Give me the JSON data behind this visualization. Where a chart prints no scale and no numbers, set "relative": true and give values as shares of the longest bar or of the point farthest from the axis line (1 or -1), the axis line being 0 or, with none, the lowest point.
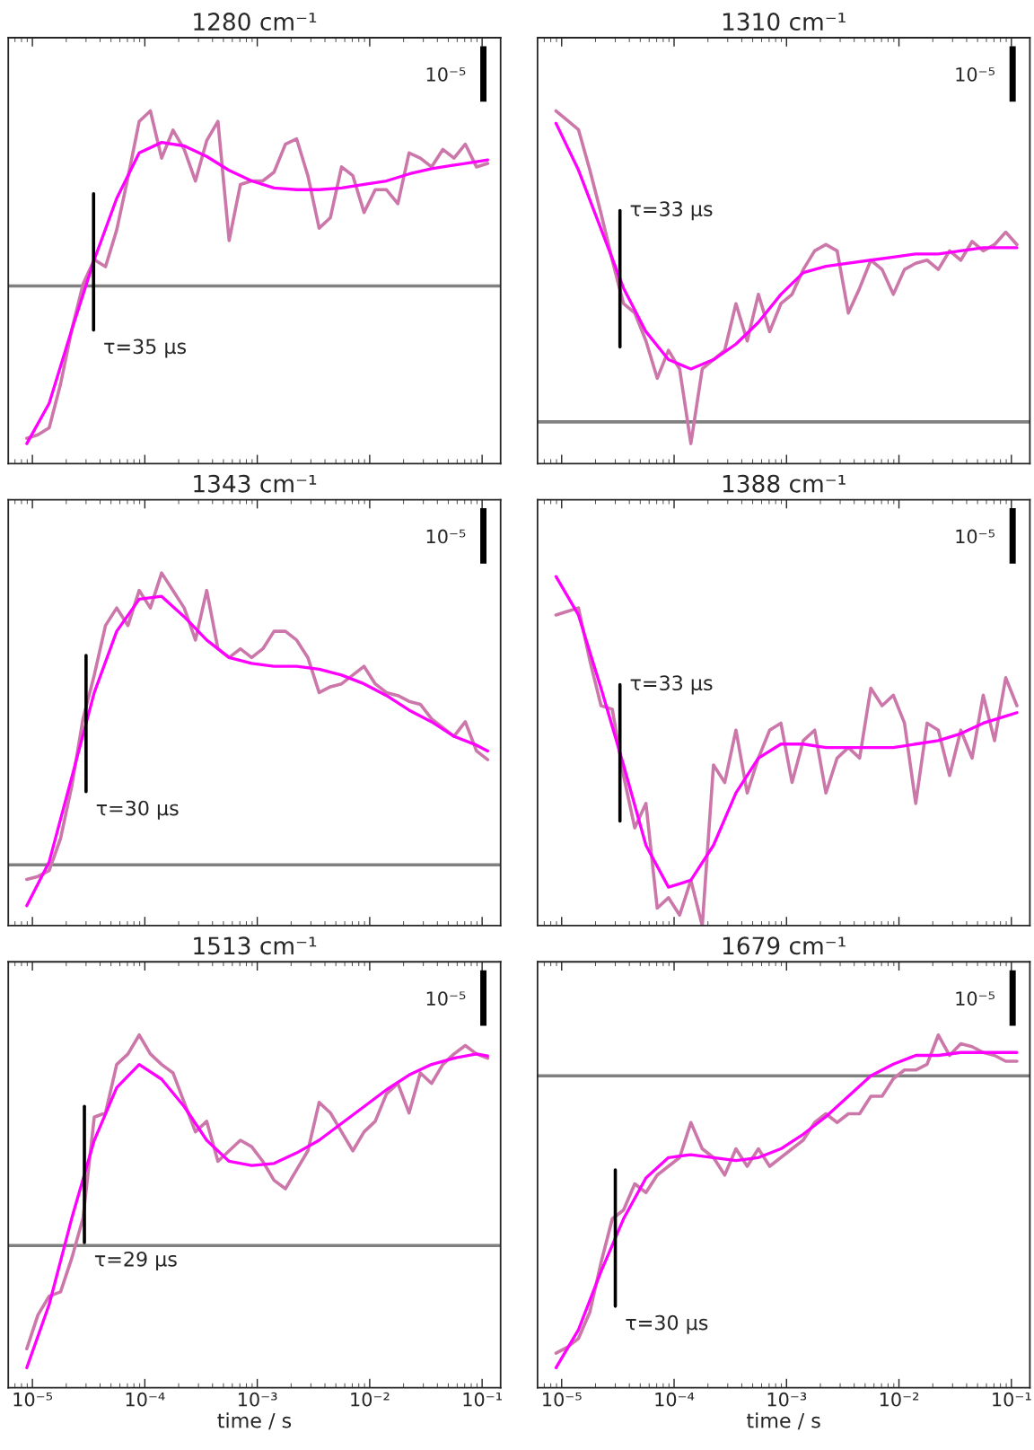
{
  "chart_data": [
    {
      "type": "line",
      "title": "1280 cm⁻¹",
      "relative": true,
      "tick_labels": false,
      "xlim": [
        6.1e-06,
        0.146
      ],
      "log": "x",
      "grid": false,
      "xticks": [
        {
          "value": 1e-05,
          "label": null
        },
        {
          "value": 0.0001,
          "label": null
        },
        {
          "value": 0.001,
          "label": null
        },
        {
          "value": 0.01,
          "label": null
        },
        {
          "value": 0.1,
          "label": null
        }
      ],
      "x": [
        8.91e-06,
        1.12e-05,
        1.41e-05,
        1.78e-05,
        2.24e-05,
        2.82e-05,
        3.55e-05,
        4.47e-05,
        5.62e-05,
        7.08e-05,
        8.91e-05,
        0.000112,
        0.000141,
        0.000178,
        0.000224,
        0.000282,
        0.000355,
        0.000447,
        0.000562,
        0.000708,
        0.000891,
        0.00112,
        0.00141,
        0.00178,
        0.00224,
        0.00282,
        0.00355,
        0.00447,
        0.00562,
        0.00708,
        0.00891,
        0.0112,
        0.0141,
        0.0178,
        0.0224,
        0.0282,
        0.0355,
        0.0447,
        0.0562,
        0.0708,
        0.0891,
        0.112
      ],
      "series": [
        {
          "type": "line",
          "color": "#cc77aa",
          "values": [
            -0.87,
            -0.85,
            -0.81,
            -0.56,
            -0.25,
            0.01,
            0.15,
            0.11,
            0.32,
            0.62,
            0.94,
            1.0,
            0.73,
            0.89,
            0.78,
            0.6,
            0.83,
            0.94,
            0.26,
            0.58,
            0.6,
            0.6,
            0.65,
            0.81,
            0.84,
            0.63,
            0.33,
            0.39,
            0.68,
            0.63,
            0.42,
            0.55,
            0.55,
            0.47,
            0.76,
            0.73,
            0.68,
            0.78,
            0.73,
            0.81,
            0.68,
            0.7
          ]
        },
        {
          "type": "line",
          "color": "#ff00ff",
          "x": [
            8.91e-06,
            1.41e-05,
            2.24e-05,
            3.55e-05,
            5.62e-05,
            8.91e-05,
            0.000141,
            0.000224,
            0.000355,
            0.000562,
            0.000891,
            0.00141,
            0.00224,
            0.00355,
            0.00562,
            0.00891,
            0.0141,
            0.0224,
            0.0355,
            0.0562,
            0.0891,
            0.112
          ],
          "values": [
            -0.9,
            -0.67,
            -0.25,
            0.15,
            0.5,
            0.76,
            0.82,
            0.8,
            0.74,
            0.66,
            0.6,
            0.56,
            0.55,
            0.55,
            0.56,
            0.58,
            0.6,
            0.64,
            0.67,
            0.69,
            0.71,
            0.72
          ]
        }
      ],
      "ref_lines": [
        {
          "axis": "y",
          "value": 0,
          "color": "#808080"
        },
        {
          "axis": "x",
          "value": 3.5e-05,
          "label": "τ=35 μs",
          "color": "#000000"
        }
      ],
      "annotations": [
        "10⁻⁵"
      ]
    },
    {
      "type": "line",
      "title": "1310 cm⁻¹",
      "relative": true,
      "tick_labels": false,
      "xlim": [
        6.1e-06,
        0.146
      ],
      "log": "x",
      "grid": false,
      "xticks": [
        {
          "value": 1e-05,
          "label": null
        },
        {
          "value": 0.0001,
          "label": null
        },
        {
          "value": 0.001,
          "label": null
        },
        {
          "value": 0.01,
          "label": null
        },
        {
          "value": 0.1,
          "label": null
        }
      ],
      "x": [
        8.91e-06,
        1.12e-05,
        1.41e-05,
        1.78e-05,
        2.24e-05,
        2.82e-05,
        3.55e-05,
        4.47e-05,
        5.62e-05,
        7.08e-05,
        8.91e-05,
        0.000112,
        0.000141,
        0.000178,
        0.000224,
        0.000282,
        0.000355,
        0.000447,
        0.000562,
        0.000708,
        0.000891,
        0.00112,
        0.00141,
        0.00178,
        0.00224,
        0.00282,
        0.00355,
        0.00447,
        0.00562,
        0.00708,
        0.00891,
        0.0112,
        0.0141,
        0.0178,
        0.0224,
        0.0282,
        0.0355,
        0.0447,
        0.0562,
        0.0708,
        0.0891,
        0.112
      ],
      "series": [
        {
          "type": "line",
          "color": "#cc77aa",
          "values": [
            1.0,
            0.97,
            0.94,
            0.81,
            0.67,
            0.52,
            0.38,
            0.35,
            0.26,
            0.14,
            0.23,
            0.17,
            -0.07,
            0.17,
            0.2,
            0.23,
            0.38,
            0.26,
            0.41,
            0.29,
            0.38,
            0.41,
            0.49,
            0.55,
            0.57,
            0.55,
            0.35,
            0.43,
            0.52,
            0.49,
            0.41,
            0.49,
            0.51,
            0.52,
            0.49,
            0.55,
            0.52,
            0.58,
            0.55,
            0.57,
            0.61,
            0.57
          ]
        },
        {
          "type": "line",
          "color": "#ff00ff",
          "x": [
            8.91e-06,
            1.41e-05,
            2.24e-05,
            3.55e-05,
            5.62e-05,
            8.91e-05,
            0.000141,
            0.000224,
            0.000355,
            0.000562,
            0.000891,
            0.00141,
            0.00224,
            0.00355,
            0.00562,
            0.00891,
            0.0141,
            0.0224,
            0.0355,
            0.0562,
            0.0891,
            0.112
          ],
          "values": [
            0.96,
            0.81,
            0.62,
            0.43,
            0.29,
            0.2,
            0.17,
            0.2,
            0.25,
            0.32,
            0.41,
            0.48,
            0.5,
            0.51,
            0.52,
            0.53,
            0.54,
            0.54,
            0.55,
            0.56,
            0.56,
            0.56
          ]
        }
      ],
      "ref_lines": [
        {
          "axis": "y",
          "value": 0,
          "color": "#808080"
        },
        {
          "axis": "x",
          "value": 3.3e-05,
          "label": "τ=33 μs",
          "color": "#000000"
        }
      ],
      "annotations": [
        "10⁻⁵"
      ]
    },
    {
      "type": "line",
      "title": "1343 cm⁻¹",
      "relative": true,
      "tick_labels": false,
      "xlim": [
        6.1e-06,
        0.146
      ],
      "log": "x",
      "grid": false,
      "xticks": [
        {
          "value": 1e-05,
          "label": null
        },
        {
          "value": 0.0001,
          "label": null
        },
        {
          "value": 0.001,
          "label": null
        },
        {
          "value": 0.01,
          "label": null
        },
        {
          "value": 0.1,
          "label": null
        }
      ],
      "x": [
        8.91e-06,
        1.12e-05,
        1.41e-05,
        1.78e-05,
        2.24e-05,
        2.82e-05,
        3.55e-05,
        4.47e-05,
        5.62e-05,
        7.08e-05,
        8.91e-05,
        0.000112,
        0.000141,
        0.000178,
        0.000224,
        0.000282,
        0.000355,
        0.000447,
        0.000562,
        0.000708,
        0.000891,
        0.00112,
        0.00141,
        0.00178,
        0.00224,
        0.00282,
        0.00355,
        0.00447,
        0.00562,
        0.00708,
        0.00891,
        0.0112,
        0.0141,
        0.0178,
        0.0224,
        0.0282,
        0.0355,
        0.0447,
        0.0562,
        0.0708,
        0.0891,
        0.112
      ],
      "series": [
        {
          "type": "line",
          "color": "#cc77aa",
          "values": [
            -0.05,
            -0.04,
            -0.02,
            0.09,
            0.27,
            0.5,
            0.65,
            0.82,
            0.88,
            0.82,
            0.94,
            0.88,
            1.0,
            0.94,
            0.88,
            0.77,
            0.94,
            0.74,
            0.71,
            0.74,
            0.71,
            0.74,
            0.8,
            0.8,
            0.77,
            0.71,
            0.59,
            0.61,
            0.62,
            0.65,
            0.68,
            0.62,
            0.59,
            0.58,
            0.56,
            0.55,
            0.5,
            0.47,
            0.44,
            0.49,
            0.39,
            0.36
          ]
        },
        {
          "type": "line",
          "color": "#ff00ff",
          "x": [
            8.91e-06,
            1.41e-05,
            2.24e-05,
            3.55e-05,
            5.62e-05,
            8.91e-05,
            0.000141,
            0.000224,
            0.000355,
            0.000562,
            0.000891,
            0.00141,
            0.00224,
            0.00355,
            0.00562,
            0.00891,
            0.0141,
            0.0224,
            0.0355,
            0.0562,
            0.0891,
            0.112
          ],
          "values": [
            -0.14,
            0.01,
            0.3,
            0.59,
            0.8,
            0.91,
            0.92,
            0.85,
            0.77,
            0.71,
            0.69,
            0.68,
            0.68,
            0.67,
            0.65,
            0.62,
            0.58,
            0.53,
            0.49,
            0.44,
            0.41,
            0.39
          ]
        }
      ],
      "ref_lines": [
        {
          "axis": "y",
          "value": 0,
          "color": "#808080"
        },
        {
          "axis": "x",
          "value": 3e-05,
          "label": "τ=30 μs",
          "color": "#000000"
        }
      ],
      "annotations": [
        "10⁻⁵"
      ]
    },
    {
      "type": "line",
      "title": "1388 cm⁻¹",
      "relative": true,
      "tick_labels": false,
      "xlim": [
        6.1e-06,
        0.146
      ],
      "log": "x",
      "grid": false,
      "xticks": [
        {
          "value": 1e-05,
          "label": null
        },
        {
          "value": 0.0001,
          "label": null
        },
        {
          "value": 0.001,
          "label": null
        },
        {
          "value": 0.01,
          "label": null
        },
        {
          "value": 0.1,
          "label": null
        }
      ],
      "x": [
        8.91e-06,
        1.12e-05,
        1.41e-05,
        1.78e-05,
        2.24e-05,
        2.82e-05,
        3.55e-05,
        4.47e-05,
        5.62e-05,
        7.08e-05,
        8.91e-05,
        0.000112,
        0.000141,
        0.000178,
        0.000224,
        0.000282,
        0.000355,
        0.000447,
        0.000562,
        0.000708,
        0.000891,
        0.00112,
        0.00141,
        0.00178,
        0.00224,
        0.00282,
        0.00355,
        0.00447,
        0.00562,
        0.00708,
        0.00891,
        0.0112,
        0.0141,
        0.0178,
        0.0224,
        0.0282,
        0.0355,
        0.0447,
        0.0562,
        0.0708,
        0.0891,
        0.112
      ],
      "series": [
        {
          "type": "line",
          "color": "#cc77aa",
          "values": [
            0.89,
            0.9,
            0.91,
            0.76,
            0.63,
            0.62,
            0.43,
            0.28,
            0.35,
            0.05,
            0.08,
            0.03,
            0.13,
            0.0,
            0.46,
            0.41,
            0.56,
            0.38,
            0.48,
            0.56,
            0.58,
            0.41,
            0.53,
            0.56,
            0.38,
            0.48,
            0.51,
            0.48,
            0.68,
            0.63,
            0.66,
            0.58,
            0.35,
            0.58,
            0.56,
            0.43,
            0.56,
            0.48,
            0.66,
            0.53,
            0.71,
            0.63
          ]
        },
        {
          "type": "line",
          "color": "#ff00ff",
          "x": [
            8.91e-06,
            1.41e-05,
            2.24e-05,
            3.55e-05,
            5.62e-05,
            8.91e-05,
            0.000141,
            0.000224,
            0.000355,
            0.000562,
            0.000891,
            0.00141,
            0.00224,
            0.00355,
            0.00562,
            0.00891,
            0.0141,
            0.0224,
            0.0355,
            0.0562,
            0.0891,
            0.112
          ],
          "values": [
            1.0,
            0.89,
            0.68,
            0.46,
            0.23,
            0.11,
            0.13,
            0.23,
            0.38,
            0.48,
            0.52,
            0.52,
            0.51,
            0.51,
            0.51,
            0.51,
            0.52,
            0.53,
            0.55,
            0.58,
            0.6,
            0.61
          ]
        }
      ],
      "ref_lines": [
        {
          "axis": "x",
          "value": 3.3e-05,
          "label": "τ=33 μs",
          "color": "#000000"
        }
      ],
      "annotations": [
        "10⁻⁵"
      ]
    },
    {
      "type": "line",
      "title": "1513 cm⁻¹",
      "relative": true,
      "tick_labels": "x",
      "xlabel": "time / s",
      "xlim": [
        6.1e-06,
        0.146
      ],
      "log": "x",
      "grid": false,
      "xticks": [
        {
          "value": 1e-05,
          "label": "10⁻⁵"
        },
        {
          "value": 0.0001,
          "label": "10⁻⁴"
        },
        {
          "value": 0.001,
          "label": "10⁻³"
        },
        {
          "value": 0.01,
          "label": "10⁻²"
        },
        {
          "value": 0.1,
          "label": "10⁻¹"
        }
      ],
      "x": [
        8.91e-06,
        1.12e-05,
        1.41e-05,
        1.78e-05,
        2.24e-05,
        2.82e-05,
        3.55e-05,
        4.47e-05,
        5.62e-05,
        7.08e-05,
        8.91e-05,
        0.000112,
        0.000141,
        0.000178,
        0.000224,
        0.000282,
        0.000355,
        0.000447,
        0.000562,
        0.000708,
        0.000891,
        0.00112,
        0.00141,
        0.00178,
        0.00224,
        0.00282,
        0.00355,
        0.00447,
        0.00562,
        0.00708,
        0.00891,
        0.0112,
        0.0141,
        0.0178,
        0.0224,
        0.0282,
        0.0355,
        0.0447,
        0.0562,
        0.0708,
        0.0891,
        0.112
      ],
      "series": [
        {
          "type": "line",
          "color": "#cc77aa",
          "values": [
            -0.49,
            -0.33,
            -0.24,
            -0.22,
            -0.06,
            0.13,
            0.61,
            0.63,
            0.86,
            0.91,
            1.0,
            0.91,
            0.86,
            0.82,
            0.68,
            0.54,
            0.59,
            0.4,
            0.45,
            0.5,
            0.47,
            0.4,
            0.31,
            0.27,
            0.36,
            0.45,
            0.68,
            0.63,
            0.54,
            0.45,
            0.54,
            0.59,
            0.72,
            0.77,
            0.63,
            0.82,
            0.77,
            0.86,
            0.91,
            0.95,
            0.91,
            0.89
          ]
        },
        {
          "type": "line",
          "color": "#ff00ff",
          "x": [
            8.91e-06,
            1.41e-05,
            2.24e-05,
            3.55e-05,
            5.62e-05,
            8.91e-05,
            0.000141,
            0.000224,
            0.000355,
            0.000562,
            0.000891,
            0.00141,
            0.00224,
            0.00355,
            0.00562,
            0.00891,
            0.0141,
            0.0224,
            0.0355,
            0.0562,
            0.0891,
            0.112
          ],
          "values": [
            -0.58,
            -0.28,
            0.13,
            0.5,
            0.75,
            0.86,
            0.79,
            0.66,
            0.5,
            0.4,
            0.38,
            0.39,
            0.44,
            0.5,
            0.58,
            0.66,
            0.74,
            0.81,
            0.86,
            0.89,
            0.91,
            0.9
          ]
        }
      ],
      "ref_lines": [
        {
          "axis": "y",
          "value": 0,
          "color": "#808080"
        },
        {
          "axis": "x",
          "value": 2.9e-05,
          "label": "τ=29 μs",
          "color": "#000000"
        }
      ],
      "annotations": [
        "10⁻⁵"
      ]
    },
    {
      "type": "line",
      "title": "1679 cm⁻¹",
      "relative": true,
      "tick_labels": "x",
      "xlabel": "time / s",
      "xlim": [
        6.1e-06,
        0.146
      ],
      "log": "x",
      "grid": false,
      "xticks": [
        {
          "value": 1e-05,
          "label": "10⁻⁵"
        },
        {
          "value": 0.0001,
          "label": "10⁻⁴"
        },
        {
          "value": 0.001,
          "label": "10⁻³"
        },
        {
          "value": 0.01,
          "label": "10⁻²"
        },
        {
          "value": 0.1,
          "label": "10⁻¹"
        }
      ],
      "x": [
        8.91e-06,
        1.12e-05,
        1.41e-05,
        1.78e-05,
        2.24e-05,
        2.82e-05,
        3.55e-05,
        4.47e-05,
        5.62e-05,
        7.08e-05,
        8.91e-05,
        0.000112,
        0.000141,
        0.000178,
        0.000224,
        0.000282,
        0.000355,
        0.000447,
        0.000562,
        0.000708,
        0.000891,
        0.00112,
        0.00141,
        0.00178,
        0.00224,
        0.00282,
        0.00355,
        0.00447,
        0.00562,
        0.00708,
        0.00891,
        0.0112,
        0.0141,
        0.0178,
        0.0224,
        0.0282,
        0.0355,
        0.0447,
        0.0562,
        0.0708,
        0.0891,
        0.112
      ],
      "series": [
        {
          "type": "line",
          "color": "#cc77aa",
          "values": [
            -0.95,
            -0.93,
            -0.9,
            -0.81,
            -0.64,
            -0.49,
            -0.46,
            -0.37,
            -0.4,
            -0.34,
            -0.31,
            -0.28,
            -0.16,
            -0.25,
            -0.28,
            -0.34,
            -0.25,
            -0.31,
            -0.25,
            -0.31,
            -0.28,
            -0.25,
            -0.22,
            -0.16,
            -0.13,
            -0.16,
            -0.13,
            -0.13,
            -0.07,
            -0.07,
            -0.01,
            0.02,
            0.02,
            0.04,
            0.14,
            0.07,
            0.11,
            0.1,
            0.08,
            0.07,
            0.05,
            0.05
          ]
        },
        {
          "type": "line",
          "color": "#ff00ff",
          "x": [
            8.91e-06,
            1.41e-05,
            2.24e-05,
            3.55e-05,
            5.62e-05,
            8.91e-05,
            0.000141,
            0.000224,
            0.000355,
            0.000562,
            0.000891,
            0.00141,
            0.00224,
            0.00355,
            0.00562,
            0.00891,
            0.0141,
            0.0224,
            0.0355,
            0.0562,
            0.0891,
            0.112
          ],
          "values": [
            -1.0,
            -0.87,
            -0.67,
            -0.49,
            -0.35,
            -0.28,
            -0.27,
            -0.28,
            -0.29,
            -0.28,
            -0.25,
            -0.2,
            -0.14,
            -0.07,
            0.0,
            0.04,
            0.07,
            0.07,
            0.08,
            0.08,
            0.08,
            0.08
          ]
        }
      ],
      "ref_lines": [
        {
          "axis": "y",
          "value": 0,
          "color": "#808080"
        },
        {
          "axis": "x",
          "value": 3e-05,
          "label": "τ=30 μs",
          "color": "#000000"
        }
      ],
      "annotations": [
        "10⁻⁵"
      ]
    }
  ]
}
